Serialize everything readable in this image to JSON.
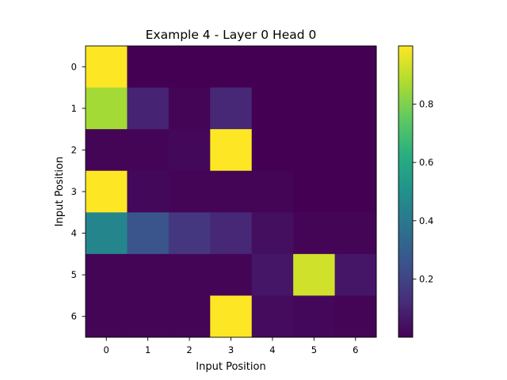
{
  "chart_data": {
    "type": "heatmap",
    "title": "Example 4 - Layer 0 Head 0",
    "xlabel": "Input Position",
    "ylabel": "Input Position",
    "x_ticks": [
      "0",
      "1",
      "2",
      "3",
      "4",
      "5",
      "6"
    ],
    "y_ticks": [
      "0",
      "1",
      "2",
      "3",
      "4",
      "5",
      "6"
    ],
    "colormap": "viridis",
    "vmin": 0.0,
    "vmax": 1.0,
    "colorbar_ticks": [
      {
        "value": 0.2,
        "label": "0.2"
      },
      {
        "value": 0.4,
        "label": "0.4"
      },
      {
        "value": 0.6,
        "label": "0.6"
      },
      {
        "value": 0.8,
        "label": "0.8"
      }
    ],
    "matrix": [
      [
        1.0,
        0.0,
        0.0,
        0.0,
        0.0,
        0.0,
        0.0
      ],
      [
        0.86,
        0.1,
        0.01,
        0.11,
        0.0,
        0.0,
        0.0
      ],
      [
        0.01,
        0.01,
        0.02,
        1.0,
        0.0,
        0.0,
        0.0
      ],
      [
        1.0,
        0.02,
        0.01,
        0.01,
        0.01,
        0.0,
        0.0
      ],
      [
        0.45,
        0.26,
        0.16,
        0.11,
        0.04,
        0.01,
        0.01
      ],
      [
        0.01,
        0.01,
        0.01,
        0.01,
        0.06,
        0.93,
        0.06
      ],
      [
        0.01,
        0.01,
        0.01,
        1.0,
        0.03,
        0.02,
        0.01
      ]
    ]
  }
}
